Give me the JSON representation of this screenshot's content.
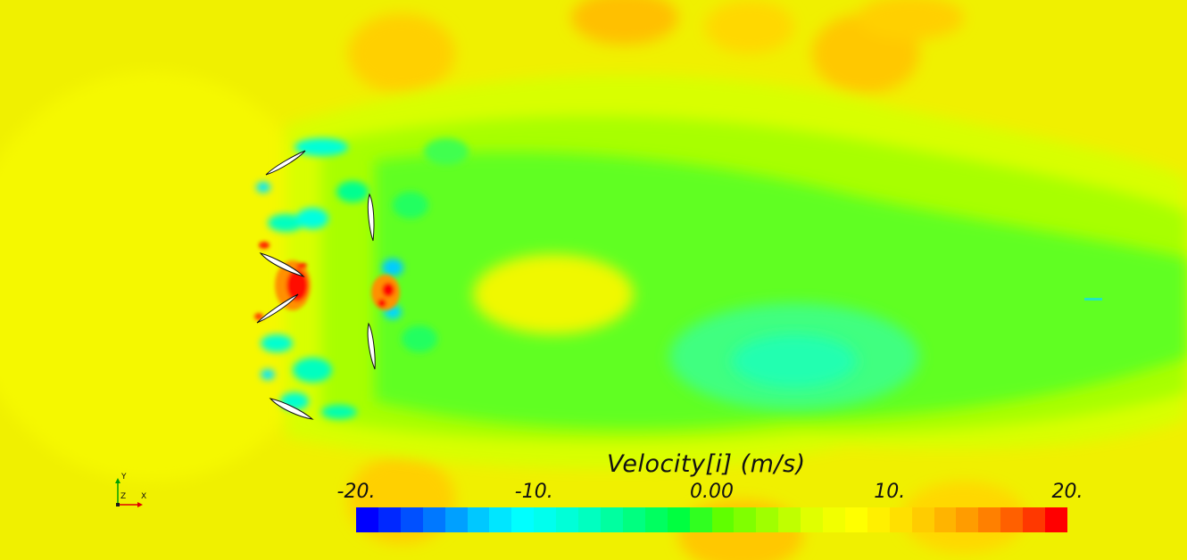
{
  "legend": {
    "title": "Velocity[i] (m/s)",
    "ticks": [
      "-20.",
      "-10.",
      "0.00",
      "10.",
      "20."
    ],
    "tick_values": [
      -20,
      -10,
      0,
      10,
      20
    ],
    "range": [
      -20,
      20
    ],
    "colors": [
      "#0000ff",
      "#0028ff",
      "#0050ff",
      "#0078ff",
      "#00a0ff",
      "#00c8ff",
      "#00e6ff",
      "#00ffff",
      "#00ffee",
      "#00ffd8",
      "#00ffc0",
      "#00ffa0",
      "#00ff80",
      "#00ff60",
      "#00ff40",
      "#30ff20",
      "#60ff00",
      "#80ff00",
      "#a0ff00",
      "#c0ff00",
      "#e0ff00",
      "#f2ff00",
      "#ffff00",
      "#fff000",
      "#ffe000",
      "#ffcc00",
      "#ffb400",
      "#ff9c00",
      "#ff8000",
      "#ff6000",
      "#ff3800",
      "#ff0000"
    ]
  },
  "triad": {
    "y_label": "Y",
    "z_label": "Z",
    "x_label": "X",
    "y_color": "#00a000",
    "x_color": "#e00000"
  }
}
